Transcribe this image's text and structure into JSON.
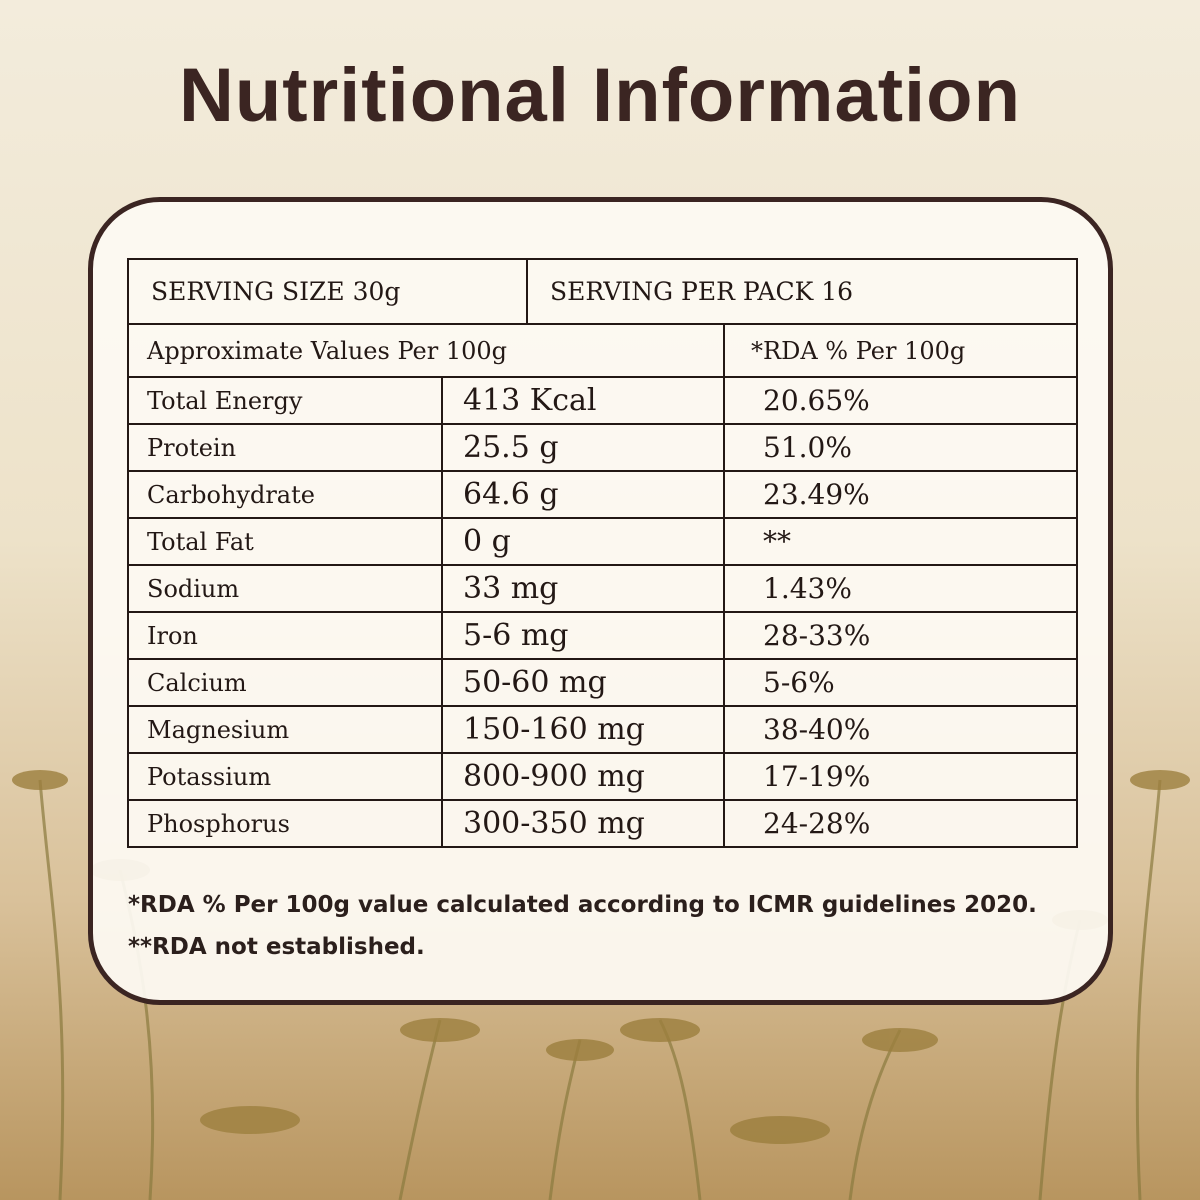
{
  "title": "Nutritional Information",
  "table": {
    "serving_size": "SERVING SIZE 30g",
    "servings_per_pack": "SERVING PER PACK 16",
    "header": [
      "Approximate Values Per 100g",
      "*RDA % Per 100g"
    ],
    "rows": [
      [
        "Total Energy",
        "413 Kcal",
        "20.65%"
      ],
      [
        "Protein",
        "25.5 g",
        "51.0%"
      ],
      [
        "Carbohydrate",
        "64.6 g",
        "23.49%"
      ],
      [
        "Total Fat",
        "0 g",
        "**"
      ],
      [
        "Sodium",
        "33 mg",
        "1.43%"
      ],
      [
        "Iron",
        "5-6 mg",
        "28-33%"
      ],
      [
        "Calcium",
        "50-60 mg",
        "5-6%"
      ],
      [
        "Magnesium",
        "150-160 mg",
        "38-40%"
      ],
      [
        "Potassium",
        "800-900 mg",
        "17-19%"
      ],
      [
        "Phosphorus",
        "300-350 mg",
        "24-28%"
      ]
    ]
  },
  "footnotes": [
    "*RDA % Per 100g value calculated according to ICMR guidelines 2020.",
    "**RDA not established."
  ]
}
